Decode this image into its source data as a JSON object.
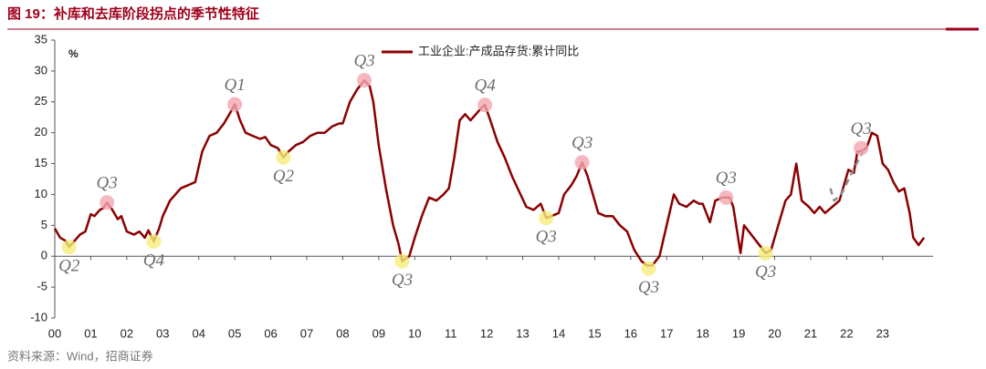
{
  "header": {
    "title": "图 19：补库和去库阶段拐点的季节性特征"
  },
  "chart_data": {
    "type": "line",
    "legend_label_unit": "%",
    "xlim": [
      0,
      24.4
    ],
    "ylim": [
      -10,
      35
    ],
    "yticks": [
      -10,
      -5,
      0,
      5,
      10,
      15,
      20,
      25,
      30,
      35
    ],
    "xticks": [
      {
        "value": 0,
        "label": "00"
      },
      {
        "value": 1,
        "label": "01"
      },
      {
        "value": 2,
        "label": "02"
      },
      {
        "value": 3,
        "label": "03"
      },
      {
        "value": 4,
        "label": "04"
      },
      {
        "value": 5,
        "label": "05"
      },
      {
        "value": 6,
        "label": "06"
      },
      {
        "value": 7,
        "label": "07"
      },
      {
        "value": 8,
        "label": "08"
      },
      {
        "value": 9,
        "label": "09"
      },
      {
        "value": 10,
        "label": "10"
      },
      {
        "value": 11,
        "label": "11"
      },
      {
        "value": 12,
        "label": "12"
      },
      {
        "value": 13,
        "label": "13"
      },
      {
        "value": 14,
        "label": "14"
      },
      {
        "value": 15,
        "label": "15"
      },
      {
        "value": 16,
        "label": "16"
      },
      {
        "value": 17,
        "label": "17"
      },
      {
        "value": 18,
        "label": "18"
      },
      {
        "value": 19,
        "label": "19"
      },
      {
        "value": 20,
        "label": "20"
      },
      {
        "value": 21,
        "label": "21"
      },
      {
        "value": 22,
        "label": "22"
      },
      {
        "value": 23,
        "label": "23"
      }
    ],
    "series": [
      {
        "name": "工业企业:产成品存货:累计同比",
        "color": "#8b0000",
        "dash": false,
        "x": [
          0,
          0.15,
          0.3,
          0.4,
          0.55,
          0.7,
          0.85,
          1.0,
          1.1,
          1.25,
          1.35,
          1.45,
          1.6,
          1.75,
          1.85,
          2.0,
          2.2,
          2.35,
          2.5,
          2.6,
          2.75,
          2.9,
          3.0,
          3.2,
          3.35,
          3.5,
          3.7,
          3.9,
          4.1,
          4.3,
          4.5,
          4.7,
          4.9,
          5.0,
          5.15,
          5.3,
          5.5,
          5.7,
          5.85,
          6.0,
          6.2,
          6.35,
          6.5,
          6.7,
          6.9,
          7.1,
          7.3,
          7.5,
          7.7,
          7.9,
          8.0,
          8.2,
          8.4,
          8.6,
          8.75,
          8.85,
          9.0,
          9.2,
          9.4,
          9.55,
          9.65,
          9.85,
          10.0,
          10.2,
          10.4,
          10.6,
          10.8,
          10.95,
          11.1,
          11.25,
          11.4,
          11.55,
          11.7,
          11.85,
          11.95,
          12.1,
          12.3,
          12.5,
          12.7,
          12.9,
          13.1,
          13.3,
          13.5,
          13.65,
          13.8,
          14.0,
          14.15,
          14.35,
          14.5,
          14.65,
          14.8,
          14.95,
          15.1,
          15.3,
          15.5,
          15.7,
          15.9,
          16.1,
          16.3,
          16.45,
          16.6,
          16.8,
          17.0,
          17.2,
          17.35,
          17.55,
          17.75,
          17.9,
          18.0,
          18.2,
          18.35,
          18.55,
          18.75,
          18.85,
          19.05,
          19.15,
          19.35,
          19.55,
          19.75,
          19.9,
          20.15,
          20.3,
          20.45,
          20.6,
          20.75,
          20.95,
          21.1,
          21.25,
          21.4,
          21.6,
          21.8,
          21.95,
          22.05,
          22.2,
          22.3,
          22.4,
          22.55,
          22.7,
          22.85,
          23.0,
          23.15,
          23.3,
          23.45,
          23.6,
          23.75,
          23.85,
          24.0,
          24.15
        ],
        "values": [
          4.5,
          3,
          2.5,
          1.5,
          2.5,
          3.5,
          4,
          6.8,
          6.5,
          7.5,
          7.8,
          8.7,
          7.5,
          6,
          6.5,
          4,
          3.5,
          4,
          3,
          4.2,
          2.4,
          4.5,
          6.5,
          9,
          10,
          11,
          11.5,
          12,
          17,
          19.5,
          20,
          21.5,
          23.5,
          24.6,
          22,
          20,
          19.5,
          19,
          19.3,
          18,
          17.5,
          16,
          17,
          18,
          18.5,
          19.5,
          20,
          20,
          21,
          21.5,
          21.5,
          25,
          27,
          28.5,
          27.5,
          25,
          18,
          11,
          5,
          2,
          -0.8,
          0,
          3,
          6.5,
          9.5,
          9,
          10,
          11,
          16,
          22,
          23,
          22,
          23,
          24,
          24.5,
          22,
          18.5,
          16,
          13,
          10.5,
          8,
          7.5,
          8.5,
          6.2,
          6.5,
          7,
          10,
          11.5,
          13,
          15.2,
          13,
          10,
          7,
          6.5,
          6.5,
          5,
          4,
          1,
          -0.8,
          -1.5,
          -1.5,
          0,
          5,
          10,
          8.5,
          8,
          9,
          8.5,
          8.5,
          5.5,
          9,
          9.5,
          9.5,
          8,
          0.5,
          5,
          3.5,
          2,
          0.5,
          1,
          6,
          9,
          10,
          15,
          9,
          8,
          7,
          8,
          7,
          8,
          9,
          12,
          14,
          13.5,
          17,
          17,
          17.5,
          20,
          19.5,
          15,
          14,
          12,
          10.5,
          11,
          7,
          3,
          1.8,
          3
        ]
      },
      {
        "color": "#8c8c8c",
        "dash": true,
        "x": [
          21.55,
          21.65,
          21.85,
          22.1,
          22.5
        ],
        "values": [
          11,
          9,
          10,
          13,
          17.5
        ]
      }
    ],
    "annotations": {
      "peaks": {
        "color": "#f4a6b0",
        "points": [
          {
            "x": 1.45,
            "y": 8.7,
            "label": "Q3"
          },
          {
            "x": 5.0,
            "y": 24.6,
            "label": "Q1"
          },
          {
            "x": 8.6,
            "y": 28.5,
            "label": "Q3"
          },
          {
            "x": 11.95,
            "y": 24.5,
            "label": "Q4"
          },
          {
            "x": 14.65,
            "y": 15.2,
            "label": "Q3"
          },
          {
            "x": 18.65,
            "y": 9.5,
            "label": "Q3"
          },
          {
            "x": 22.4,
            "y": 17.5,
            "label": "Q3"
          }
        ]
      },
      "troughs": {
        "color": "#f5ec7a",
        "points": [
          {
            "x": 0.4,
            "y": 1.5,
            "label": "Q2"
          },
          {
            "x": 2.75,
            "y": 2.4,
            "label": "Q4"
          },
          {
            "x": 6.35,
            "y": 16,
            "label": "Q2"
          },
          {
            "x": 9.65,
            "y": -0.8,
            "label": "Q3"
          },
          {
            "x": 13.65,
            "y": 6.2,
            "label": "Q3"
          },
          {
            "x": 16.5,
            "y": -2,
            "label": "Q3"
          },
          {
            "x": 19.75,
            "y": 0.5,
            "label": "Q3"
          }
        ]
      }
    }
  },
  "source": "资料来源：Wind，招商证券"
}
